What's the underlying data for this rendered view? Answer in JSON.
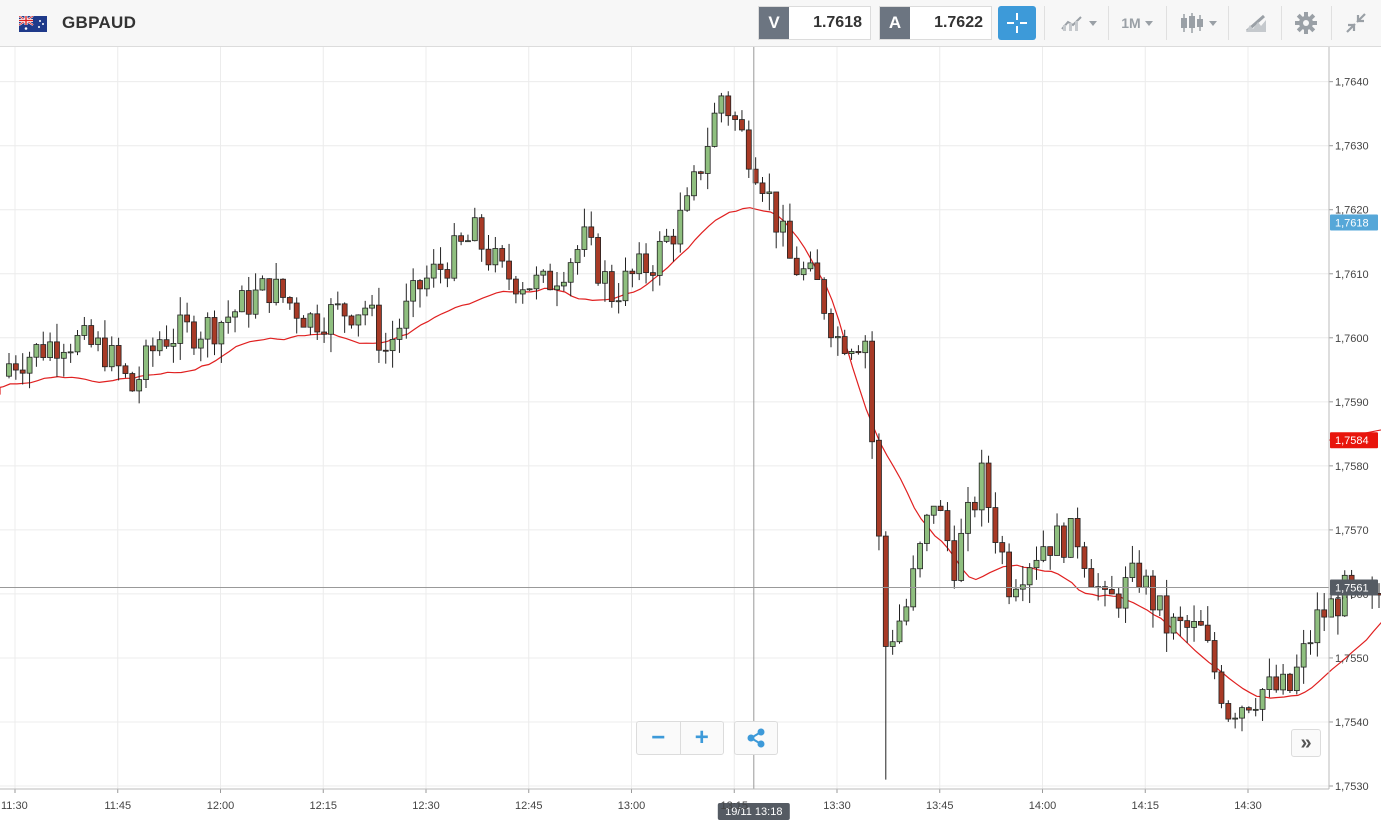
{
  "header": {
    "symbol": "GBPAUD",
    "sell_tag": "V",
    "sell_price": "1.7618",
    "buy_tag": "A",
    "buy_price": "1.7622",
    "timeframe": "1M",
    "flag_icon": "gb-au-flag-icon",
    "icons": [
      "crosshair-icon",
      "indicators-icon",
      "candlestick-icon",
      "draw-icon",
      "gear-icon",
      "collapse-icon"
    ]
  },
  "controls": {
    "zoom_out": "−",
    "zoom_in": "+",
    "scroll_right": "»"
  },
  "chart_data": {
    "type": "candlestick",
    "symbol": "GBPAUD",
    "interval": "1M",
    "x_ticks": [
      "11:30",
      "11:45",
      "12:00",
      "12:15",
      "12:30",
      "12:45",
      "13:00",
      "13:15",
      "13:30",
      "13:45",
      "14:00",
      "14:15",
      "14:30"
    ],
    "y_ticks": [
      "1,7530",
      "1,7540",
      "1,7550",
      "1,7560",
      "1,7570",
      "1,7580",
      "1,7590",
      "1,7600",
      "1,7610",
      "1,7620",
      "1,7630",
      "1,7640"
    ],
    "ylim": [
      1.753,
      1.7643
    ],
    "grid": true,
    "price_labels": [
      {
        "label": "1,7618",
        "value": 1.7618,
        "color": "#56a7d8"
      },
      {
        "label": "1,7584",
        "value": 1.7584,
        "color": "#e8150c"
      },
      {
        "label": "1,7561",
        "value": 1.7561,
        "color": "#555b63"
      }
    ],
    "crosshair": {
      "time_label": "19/11 13:18",
      "price_label": "1,7561",
      "x_time": "13:18",
      "y_value": 1.7561
    },
    "moving_average_color": "#e02020",
    "bull_color": "#8fbf7f",
    "bear_color": "#a83a26"
  }
}
